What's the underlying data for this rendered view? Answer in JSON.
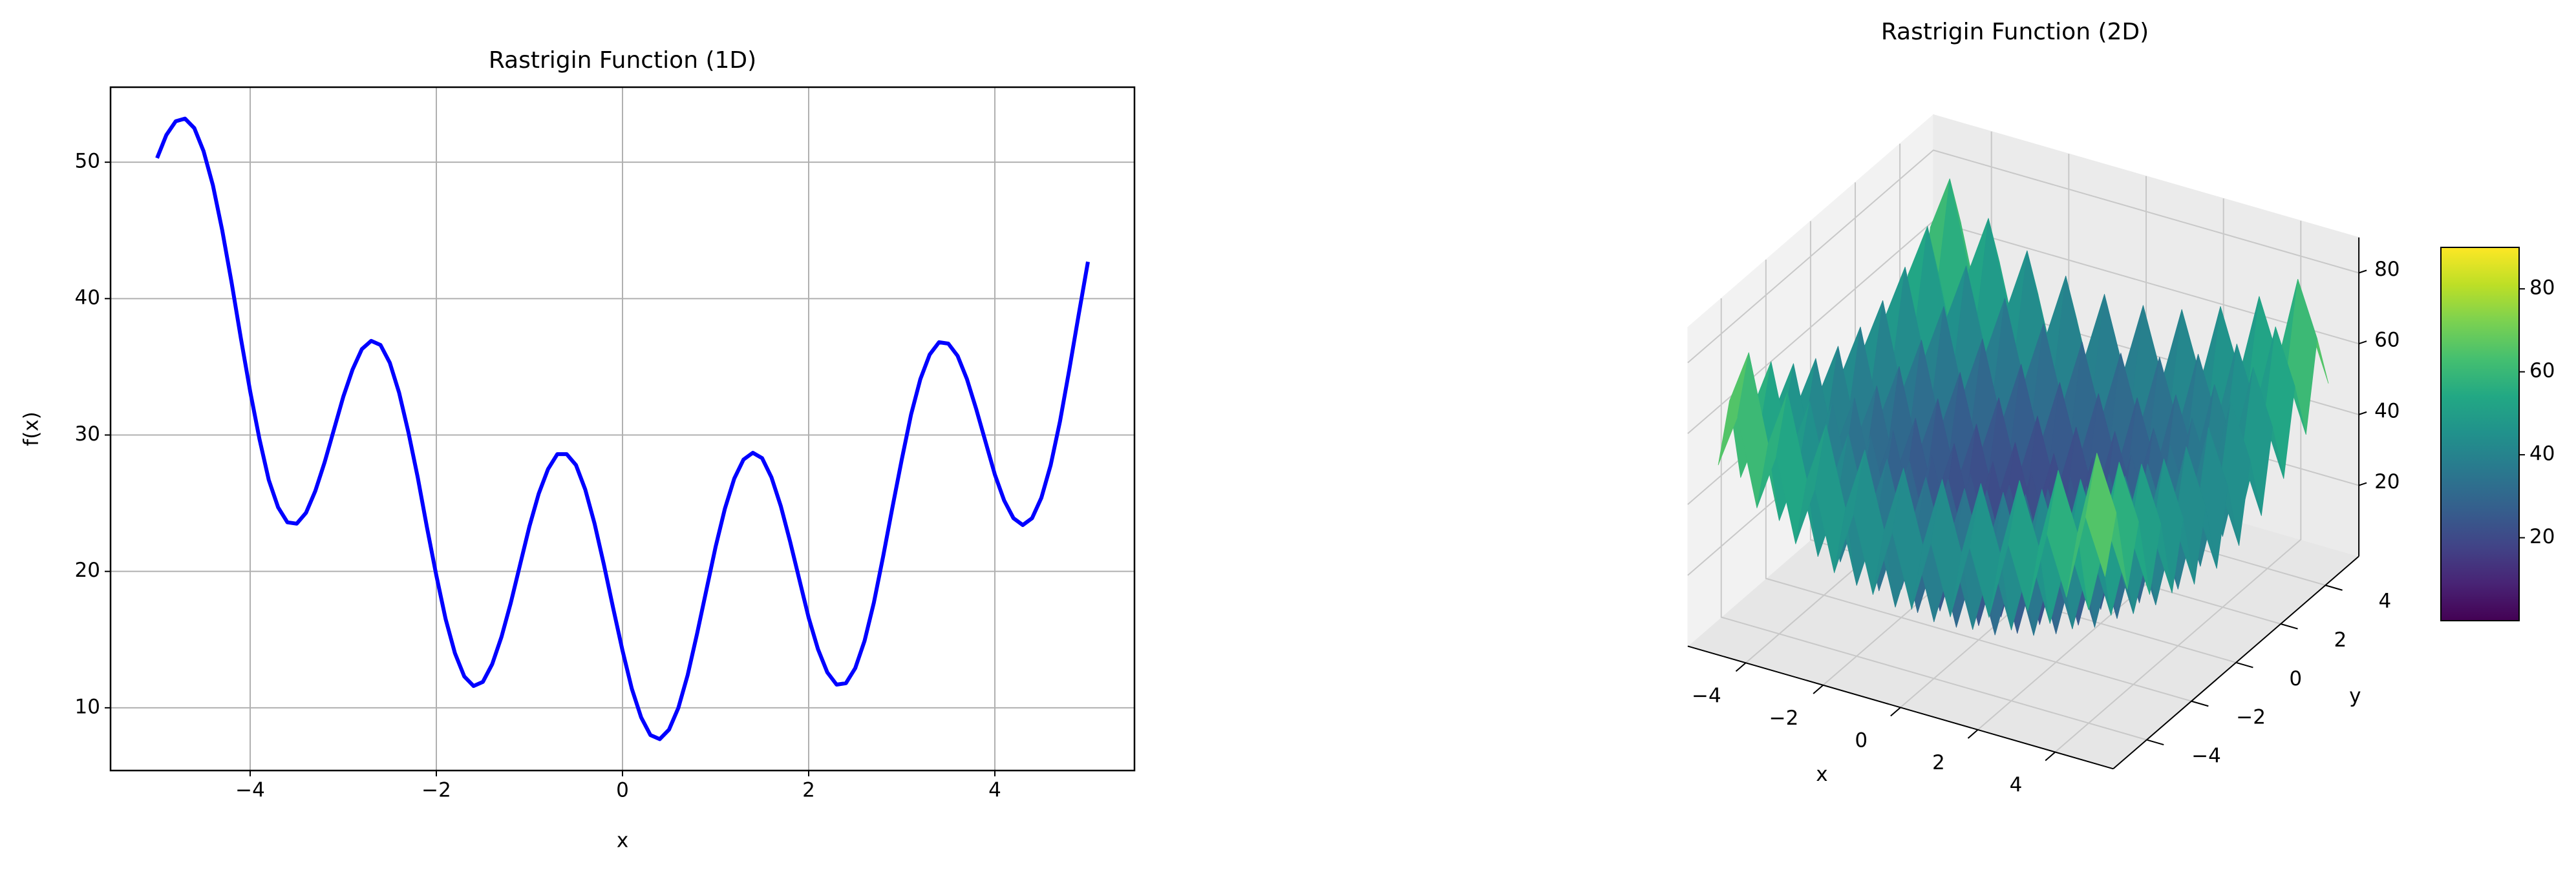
{
  "chart_data": [
    {
      "type": "line",
      "title": "Rastrigin Function (1D)",
      "xlabel": "x",
      "ylabel": "f(x)",
      "color": "#0000ff",
      "grid": true,
      "x": [
        -5.0,
        -4.9,
        -4.8,
        -4.7,
        -4.6,
        -4.5,
        -4.4,
        -4.3,
        -4.2,
        -4.1,
        -4.0,
        -3.9,
        -3.8,
        -3.7,
        -3.6,
        -3.5,
        -3.4,
        -3.3,
        -3.2,
        -3.1,
        -3.0,
        -2.9,
        -2.8,
        -2.7,
        -2.6,
        -2.5,
        -2.4,
        -2.3,
        -2.2,
        -2.1,
        -2.0,
        -1.9,
        -1.8,
        -1.7,
        -1.6,
        -1.5,
        -1.4,
        -1.3,
        -1.2,
        -1.1,
        -1.0,
        -0.9,
        -0.8,
        -0.7,
        -0.6,
        -0.5,
        -0.4,
        -0.3,
        -0.2,
        -0.1,
        0.0,
        0.1,
        0.2,
        0.3,
        0.4,
        0.5,
        0.6,
        0.7,
        0.8,
        0.9,
        1.0,
        1.1,
        1.2,
        1.3,
        1.4,
        1.5,
        1.6,
        1.7,
        1.8,
        1.9,
        2.0,
        2.1,
        2.2,
        2.3,
        2.4,
        2.5,
        2.6,
        2.7,
        2.8,
        2.9,
        3.0,
        3.1,
        3.2,
        3.3,
        3.4,
        3.5,
        3.6,
        3.7,
        3.8,
        3.9,
        4.0,
        4.1,
        4.2,
        4.3,
        4.4,
        4.5,
        4.6,
        4.7,
        4.8,
        4.9,
        5.0
      ],
      "values": [
        50.3,
        52.0,
        53.0,
        53.2,
        52.5,
        50.8,
        48.3,
        45.0,
        41.2,
        37.1,
        33.2,
        29.7,
        26.7,
        24.7,
        23.6,
        23.5,
        24.3,
        25.9,
        28.0,
        30.4,
        32.8,
        34.8,
        36.3,
        36.9,
        36.6,
        35.3,
        33.1,
        30.2,
        26.9,
        23.2,
        19.7,
        16.5,
        14.0,
        12.3,
        11.6,
        11.9,
        13.2,
        15.2,
        17.7,
        20.5,
        23.3,
        25.7,
        27.5,
        28.6,
        28.6,
        27.8,
        26.0,
        23.5,
        20.5,
        17.3,
        14.2,
        11.4,
        9.3,
        8.0,
        7.7,
        8.4,
        10.0,
        12.4,
        15.4,
        18.6,
        21.8,
        24.6,
        26.8,
        28.2,
        28.7,
        28.3,
        26.9,
        24.8,
        22.2,
        19.4,
        16.6,
        14.3,
        12.6,
        11.7,
        11.8,
        12.9,
        14.9,
        17.7,
        21.1,
        24.7,
        28.2,
        31.5,
        34.1,
        35.9,
        36.8,
        36.7,
        35.8,
        34.1,
        31.9,
        29.5,
        27.1,
        25.2,
        23.9,
        23.4,
        23.9,
        25.4,
        27.8,
        31.0,
        34.8,
        38.8,
        42.7
      ],
      "xlim": [
        -5.5,
        5.5
      ],
      "ylim": [
        5.4,
        55.5
      ],
      "xticks": [
        {
          "value": -4,
          "label": "−4"
        },
        {
          "value": -2,
          "label": "−2"
        },
        0,
        2,
        4
      ],
      "yticks": [
        10,
        20,
        30,
        40,
        50
      ]
    },
    {
      "type": "surface3d",
      "title": "Rastrigin Function (2D)",
      "xlabel": "x",
      "ylabel": "y",
      "colormap": "viridis",
      "x": [
        -5,
        -4.5,
        -4,
        -3.5,
        -3,
        -2.5,
        -2,
        -1.5,
        -1,
        -0.5,
        0,
        0.5,
        1,
        1.5,
        2,
        2.5,
        3,
        3.5,
        4,
        4.5,
        5
      ],
      "y": [
        -5,
        -4.5,
        -4,
        -3.5,
        -3,
        -2.5,
        -2,
        -1.5,
        -1,
        -0.5,
        0,
        0.5,
        1,
        1.5,
        2,
        2.5,
        3,
        3.5,
        4,
        4.5,
        5
      ],
      "z": [
        [
          50,
          65.25,
          41,
          57.25,
          34,
          51.25,
          29,
          47.25,
          26,
          45.25,
          25,
          45.25,
          26,
          47.25,
          29,
          51.25,
          34,
          57.25,
          41,
          65.25,
          50
        ],
        [
          65.25,
          80.5,
          56.25,
          72.5,
          49.25,
          66.5,
          44.25,
          62.5,
          41.25,
          60.5,
          40.25,
          60.5,
          41.25,
          62.5,
          44.25,
          66.5,
          49.25,
          72.5,
          56.25,
          80.5,
          65.25
        ],
        [
          41,
          56.25,
          32,
          48.25,
          25,
          42.25,
          20,
          38.25,
          17,
          36.25,
          16,
          36.25,
          17,
          38.25,
          20,
          42.25,
          25,
          48.25,
          32,
          56.25,
          41
        ],
        [
          57.25,
          72.5,
          48.25,
          64.5,
          41.25,
          58.5,
          36.25,
          54.5,
          33.25,
          52.5,
          32.25,
          52.5,
          33.25,
          54.5,
          36.25,
          58.5,
          41.25,
          64.5,
          48.25,
          72.5,
          57.25
        ],
        [
          34,
          49.25,
          25,
          41.25,
          18,
          35.25,
          13,
          31.25,
          10,
          29.25,
          9,
          29.25,
          10,
          31.25,
          13,
          35.25,
          18,
          41.25,
          25,
          49.25,
          34
        ],
        [
          51.25,
          66.5,
          42.25,
          58.5,
          35.25,
          52.5,
          30.25,
          48.5,
          27.25,
          46.5,
          26.25,
          46.5,
          27.25,
          48.5,
          30.25,
          52.5,
          35.25,
          58.5,
          42.25,
          66.5,
          51.25
        ],
        [
          29,
          44.25,
          20,
          36.25,
          13,
          30.25,
          8,
          26.25,
          5,
          24.25,
          4,
          24.25,
          5,
          26.25,
          8,
          30.25,
          13,
          36.25,
          20,
          44.25,
          29
        ],
        [
          47.25,
          62.5,
          38.25,
          54.5,
          31.25,
          48.5,
          26.25,
          44.5,
          23.25,
          42.5,
          22.25,
          42.5,
          23.25,
          44.5,
          26.25,
          48.5,
          31.25,
          54.5,
          38.25,
          62.5,
          47.25
        ],
        [
          26,
          41.25,
          17,
          33.25,
          10,
          27.25,
          5,
          23.25,
          2,
          21.25,
          1,
          21.25,
          2,
          23.25,
          5,
          27.25,
          10,
          33.25,
          17,
          41.25,
          26
        ],
        [
          45.25,
          60.5,
          36.25,
          52.5,
          29.25,
          46.5,
          24.25,
          42.5,
          21.25,
          40.5,
          20.25,
          40.5,
          21.25,
          42.5,
          24.25,
          46.5,
          29.25,
          52.5,
          36.25,
          60.5,
          45.25
        ],
        [
          25,
          40.25,
          16,
          32.25,
          9,
          26.25,
          4,
          22.25,
          1,
          20.25,
          0,
          20.25,
          1,
          22.25,
          4,
          26.25,
          9,
          32.25,
          16,
          40.25,
          25
        ],
        [
          45.25,
          60.5,
          36.25,
          52.5,
          29.25,
          46.5,
          24.25,
          42.5,
          21.25,
          40.5,
          20.25,
          40.5,
          21.25,
          42.5,
          24.25,
          46.5,
          29.25,
          52.5,
          36.25,
          60.5,
          45.25
        ],
        [
          26,
          41.25,
          17,
          33.25,
          10,
          27.25,
          5,
          23.25,
          2,
          21.25,
          1,
          21.25,
          2,
          23.25,
          5,
          27.25,
          10,
          33.25,
          17,
          41.25,
          26
        ],
        [
          47.25,
          62.5,
          38.25,
          54.5,
          31.25,
          48.5,
          26.25,
          44.5,
          23.25,
          42.5,
          22.25,
          42.5,
          23.25,
          44.5,
          26.25,
          48.5,
          31.25,
          54.5,
          38.25,
          62.5,
          47.25
        ],
        [
          29,
          44.25,
          20,
          36.25,
          13,
          30.25,
          8,
          26.25,
          5,
          24.25,
          4,
          24.25,
          5,
          26.25,
          8,
          30.25,
          13,
          36.25,
          20,
          44.25,
          29
        ],
        [
          51.25,
          66.5,
          42.25,
          58.5,
          35.25,
          52.5,
          30.25,
          48.5,
          27.25,
          46.5,
          26.25,
          46.5,
          27.25,
          48.5,
          30.25,
          52.5,
          35.25,
          58.5,
          42.25,
          66.5,
          51.25
        ],
        [
          34,
          49.25,
          25,
          41.25,
          18,
          35.25,
          13,
          31.25,
          10,
          29.25,
          9,
          29.25,
          10,
          31.25,
          13,
          35.25,
          18,
          41.25,
          25,
          49.25,
          34
        ],
        [
          57.25,
          72.5,
          48.25,
          64.5,
          41.25,
          58.5,
          36.25,
          54.5,
          33.25,
          52.5,
          32.25,
          52.5,
          33.25,
          54.5,
          36.25,
          58.5,
          41.25,
          64.5,
          48.25,
          72.5,
          57.25
        ],
        [
          41,
          56.25,
          32,
          48.25,
          25,
          42.25,
          20,
          38.25,
          17,
          36.25,
          16,
          36.25,
          17,
          38.25,
          20,
          42.25,
          25,
          48.25,
          32,
          56.25,
          41
        ],
        [
          65.25,
          80.5,
          56.25,
          72.5,
          49.25,
          66.5,
          44.25,
          62.5,
          41.25,
          60.5,
          40.25,
          60.5,
          41.25,
          62.5,
          44.25,
          66.5,
          49.25,
          72.5,
          56.25,
          80.5,
          65.25
        ],
        [
          50,
          65.25,
          41,
          57.25,
          34,
          51.25,
          29,
          47.25,
          26,
          45.25,
          25,
          45.25,
          26,
          47.25,
          29,
          51.25,
          34,
          57.25,
          41,
          65.25,
          50
        ]
      ],
      "xlim": [
        -5.5,
        5.5
      ],
      "ylim": [
        -5.5,
        5.5
      ],
      "zlim": [
        0,
        90
      ],
      "xticks": [
        {
          "value": -4,
          "label": "−4"
        },
        {
          "value": -2,
          "label": "−2"
        },
        0,
        2,
        4
      ],
      "yticks": [
        {
          "value": -4,
          "label": "−4"
        },
        {
          "value": -2,
          "label": "−2"
        },
        0,
        2,
        4
      ],
      "zticks": [
        20,
        40,
        60,
        80
      ],
      "colorbar": {
        "lim": [
          0,
          90
        ],
        "ticks": [
          20,
          40,
          60,
          80
        ]
      }
    }
  ]
}
